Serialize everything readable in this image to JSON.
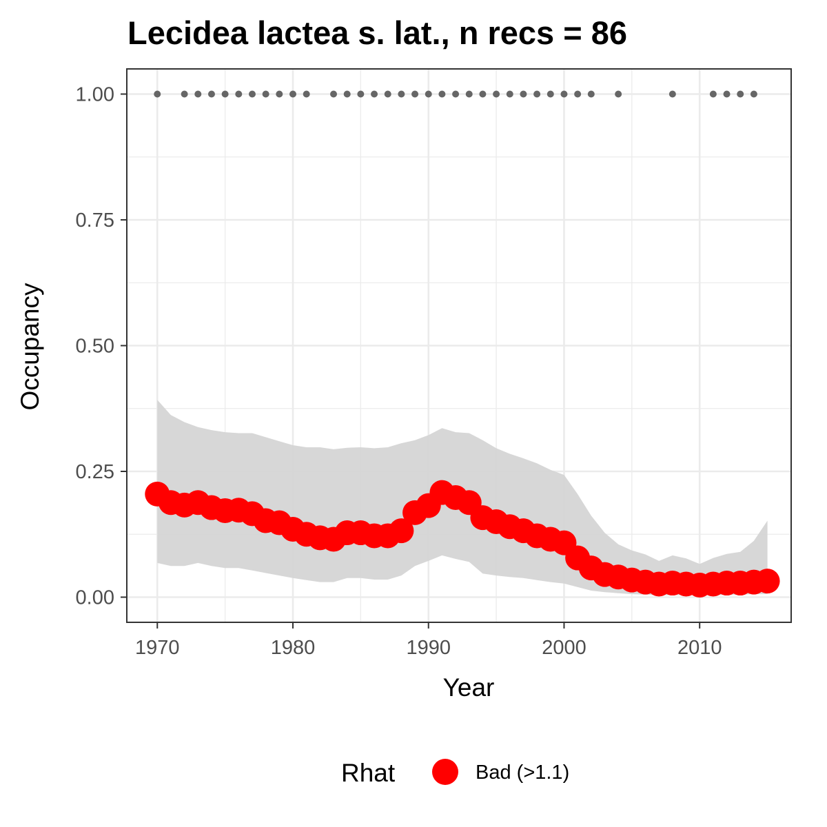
{
  "chart_data": {
    "type": "line",
    "title": "Lecidea lactea s. lat., n recs = 86",
    "xlabel": "Year",
    "ylabel": "Occupancy",
    "xlim": [
      1967.75,
      2016.75
    ],
    "ylim": [
      -0.05,
      1.05
    ],
    "x_ticks": [
      1970,
      1980,
      1990,
      2000,
      2010
    ],
    "x_tick_labels": [
      "1970",
      "1980",
      "1990",
      "2000",
      "2010"
    ],
    "y_ticks": [
      0,
      0.25,
      0.5,
      0.75,
      1.0
    ],
    "y_tick_labels": [
      "0.00",
      "0.25",
      "0.50",
      "0.75",
      "1.00"
    ],
    "grid": true,
    "legend": {
      "title": "Rhat",
      "position": "bottom",
      "entries": [
        {
          "label": "Bad (>1.1)",
          "color": "#ff0000"
        }
      ]
    },
    "colors": {
      "occupancy": "#ff0000",
      "ribbon": "#d5d5d5",
      "records": "#666666"
    },
    "series": [
      {
        "x": [
          1970,
          1971,
          1972,
          1973,
          1974,
          1975,
          1976,
          1977,
          1978,
          1979,
          1980,
          1981,
          1982,
          1983,
          1984,
          1985,
          1986,
          1987,
          1988,
          1989,
          1990,
          1991,
          1992,
          1993,
          1994,
          1995,
          1996,
          1997,
          1998,
          1999,
          2000,
          2001,
          2002,
          2003,
          2004,
          2005,
          2006,
          2007,
          2008,
          2009,
          2010,
          2011,
          2012,
          2013,
          2014,
          2015
        ],
        "y": [
          0.205,
          0.188,
          0.183,
          0.188,
          0.178,
          0.172,
          0.173,
          0.166,
          0.152,
          0.148,
          0.135,
          0.125,
          0.118,
          0.115,
          0.128,
          0.128,
          0.122,
          0.122,
          0.132,
          0.168,
          0.182,
          0.208,
          0.198,
          0.188,
          0.158,
          0.15,
          0.14,
          0.132,
          0.122,
          0.115,
          0.108,
          0.078,
          0.058,
          0.045,
          0.04,
          0.034,
          0.03,
          0.026,
          0.028,
          0.026,
          0.024,
          0.026,
          0.028,
          0.028,
          0.03,
          0.032
        ],
        "lower": [
          0.068,
          0.062,
          0.062,
          0.068,
          0.062,
          0.058,
          0.058,
          0.053,
          0.048,
          0.043,
          0.038,
          0.034,
          0.03,
          0.03,
          0.038,
          0.038,
          0.035,
          0.035,
          0.043,
          0.062,
          0.072,
          0.083,
          0.076,
          0.07,
          0.047,
          0.043,
          0.04,
          0.038,
          0.034,
          0.03,
          0.027,
          0.02,
          0.013,
          0.01,
          0.008,
          0.006,
          0.005,
          0.004,
          0.004,
          0.004,
          0.004,
          0.004,
          0.005,
          0.005,
          0.006,
          0.006
        ],
        "upper": [
          0.392,
          0.362,
          0.348,
          0.338,
          0.332,
          0.328,
          0.326,
          0.326,
          0.318,
          0.31,
          0.302,
          0.298,
          0.298,
          0.294,
          0.297,
          0.298,
          0.296,
          0.298,
          0.306,
          0.312,
          0.322,
          0.336,
          0.328,
          0.326,
          0.312,
          0.296,
          0.285,
          0.276,
          0.266,
          0.253,
          0.243,
          0.205,
          0.162,
          0.128,
          0.105,
          0.093,
          0.085,
          0.072,
          0.083,
          0.077,
          0.066,
          0.078,
          0.086,
          0.09,
          0.112,
          0.152
        ]
      },
      {
        "type": "scatter",
        "x": [
          1970,
          1972,
          1973,
          1974,
          1975,
          1976,
          1977,
          1978,
          1979,
          1980,
          1981,
          1983,
          1984,
          1985,
          1986,
          1987,
          1988,
          1989,
          1990,
          1991,
          1992,
          1993,
          1994,
          1995,
          1996,
          1997,
          1998,
          1999,
          2000,
          2001,
          2002,
          2004,
          2008,
          2011,
          2012,
          2013,
          2014
        ],
        "y": [
          1,
          1,
          1,
          1,
          1,
          1,
          1,
          1,
          1,
          1,
          1,
          1,
          1,
          1,
          1,
          1,
          1,
          1,
          1,
          1,
          1,
          1,
          1,
          1,
          1,
          1,
          1,
          1,
          1,
          1,
          1,
          1,
          1,
          1,
          1,
          1,
          1
        ]
      }
    ]
  }
}
